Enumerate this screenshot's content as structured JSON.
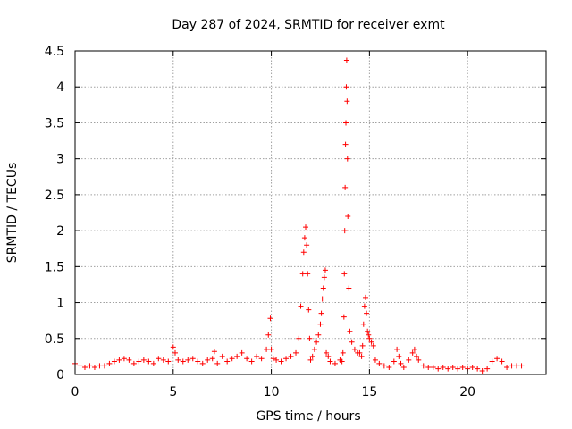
{
  "chart_data": {
    "type": "scatter",
    "title": "Day 287 of 2024, SRMTID for receiver exmt",
    "xlabel": "GPS time / hours",
    "ylabel": "SRMTID / TECUs",
    "xlim": [
      0,
      24
    ],
    "ylim": [
      0,
      4.5
    ],
    "xticks": [
      0,
      5,
      10,
      15,
      20
    ],
    "xtick_labels": [
      "0",
      "5",
      "10",
      "15",
      "20"
    ],
    "yticks": [
      0,
      0.5,
      1,
      1.5,
      2,
      2.5,
      3,
      3.5,
      4,
      4.5
    ],
    "ytick_labels": [
      "0",
      "0.5",
      "1",
      "1.5",
      "2",
      "2.5",
      "3",
      "3.5",
      "4",
      "4.5"
    ],
    "grid": true,
    "marker": "+",
    "color": "#ff0000",
    "series": [
      {
        "name": "SRMTID",
        "x": [
          0.0,
          0.25,
          0.5,
          0.75,
          1.0,
          1.25,
          1.5,
          1.75,
          2.0,
          2.25,
          2.5,
          2.75,
          3.0,
          3.25,
          3.5,
          3.75,
          4.0,
          4.25,
          4.5,
          4.75,
          5.0,
          5.1,
          5.25,
          5.5,
          5.75,
          6.0,
          6.25,
          6.5,
          6.75,
          7.0,
          7.1,
          7.25,
          7.5,
          7.75,
          8.0,
          8.25,
          8.5,
          8.75,
          9.0,
          9.25,
          9.5,
          9.75,
          9.85,
          9.95,
          10.0,
          10.1,
          10.25,
          10.5,
          10.75,
          11.0,
          11.25,
          11.4,
          11.5,
          11.6,
          11.65,
          11.7,
          11.75,
          11.8,
          11.85,
          11.9,
          11.95,
          12.0,
          12.1,
          12.2,
          12.3,
          12.4,
          12.5,
          12.55,
          12.6,
          12.65,
          12.7,
          12.75,
          12.8,
          12.9,
          13.0,
          13.25,
          13.5,
          13.6,
          13.65,
          13.7,
          13.72,
          13.74,
          13.76,
          13.78,
          13.8,
          13.82,
          13.84,
          13.86,
          13.88,
          13.9,
          13.95,
          14.0,
          14.1,
          14.25,
          14.4,
          14.5,
          14.6,
          14.65,
          14.7,
          14.75,
          14.8,
          14.85,
          14.9,
          14.95,
          15.0,
          15.1,
          15.2,
          15.3,
          15.5,
          15.75,
          16.0,
          16.25,
          16.4,
          16.5,
          16.6,
          16.75,
          17.0,
          17.2,
          17.3,
          17.4,
          17.5,
          17.75,
          18.0,
          18.25,
          18.5,
          18.75,
          19.0,
          19.25,
          19.5,
          19.75,
          20.0,
          20.25,
          20.5,
          20.75,
          21.0,
          21.25,
          21.5,
          21.75,
          22.0,
          22.25,
          22.5,
          22.75
        ],
        "y": [
          0.15,
          0.12,
          0.1,
          0.12,
          0.1,
          0.12,
          0.12,
          0.15,
          0.18,
          0.2,
          0.22,
          0.2,
          0.15,
          0.18,
          0.2,
          0.18,
          0.15,
          0.22,
          0.2,
          0.18,
          0.38,
          0.3,
          0.2,
          0.18,
          0.2,
          0.22,
          0.18,
          0.15,
          0.2,
          0.22,
          0.32,
          0.15,
          0.25,
          0.18,
          0.22,
          0.25,
          0.3,
          0.22,
          0.18,
          0.25,
          0.22,
          0.35,
          0.55,
          0.78,
          0.35,
          0.22,
          0.2,
          0.18,
          0.22,
          0.25,
          0.3,
          0.5,
          0.95,
          1.4,
          1.7,
          1.9,
          2.05,
          1.8,
          1.4,
          0.9,
          0.5,
          0.2,
          0.25,
          0.35,
          0.45,
          0.55,
          0.7,
          0.85,
          1.05,
          1.2,
          1.35,
          1.45,
          0.3,
          0.25,
          0.18,
          0.15,
          0.2,
          0.18,
          0.3,
          0.8,
          1.4,
          2.0,
          2.6,
          3.2,
          3.5,
          4.0,
          4.37,
          3.8,
          3.0,
          2.2,
          1.2,
          0.6,
          0.45,
          0.35,
          0.3,
          0.3,
          0.25,
          0.4,
          0.7,
          0.95,
          1.07,
          0.85,
          0.6,
          0.55,
          0.5,
          0.45,
          0.4,
          0.2,
          0.15,
          0.12,
          0.1,
          0.18,
          0.35,
          0.25,
          0.15,
          0.1,
          0.2,
          0.3,
          0.35,
          0.25,
          0.2,
          0.12,
          0.1,
          0.1,
          0.08,
          0.1,
          0.08,
          0.1,
          0.08,
          0.1,
          0.08,
          0.1,
          0.08,
          0.05,
          0.08,
          0.18,
          0.22,
          0.18,
          0.1,
          0.12,
          0.12,
          0.12
        ]
      }
    ]
  }
}
